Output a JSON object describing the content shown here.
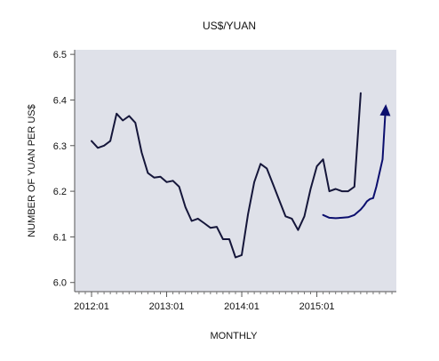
{
  "chart_data": {
    "type": "line",
    "title": "US$/YUAN",
    "xlabel": "MONTHLY",
    "ylabel": "NUMBER OF YUAN PER US$",
    "ylim": [
      5.98,
      6.51
    ],
    "yticks": [
      6.0,
      6.1,
      6.2,
      6.3,
      6.4,
      6.5
    ],
    "ytick_labels": [
      "6.0",
      "6.1",
      "6.2",
      "6.3",
      "6.4",
      "6.5"
    ],
    "xticks": [
      {
        "label": "2012:01",
        "month": 0
      },
      {
        "label": "2013:01",
        "month": 12
      },
      {
        "label": "2014:01",
        "month": 24
      },
      {
        "label": "2015:01",
        "month": 36
      }
    ],
    "xlim_months": [
      -2.7,
      48.7
    ],
    "grid": false,
    "background_color": "#dfe1e9",
    "series": [
      {
        "line_color": "#15163a",
        "x": [
          0,
          1,
          2,
          3,
          4,
          5,
          6,
          7,
          8,
          9,
          10,
          11,
          12,
          13,
          14,
          15,
          16,
          17,
          18,
          19,
          20,
          21,
          22,
          23,
          24,
          25,
          26,
          27,
          28,
          29,
          30,
          31,
          32,
          33,
          34,
          35,
          36,
          37,
          38,
          39,
          40,
          41,
          42,
          43
        ],
        "values": [
          6.31,
          6.295,
          6.3,
          6.31,
          6.37,
          6.355,
          6.365,
          6.35,
          6.285,
          6.24,
          6.23,
          6.232,
          6.22,
          6.223,
          6.21,
          6.165,
          6.135,
          6.14,
          6.13,
          6.12,
          6.122,
          6.095,
          6.095,
          6.055,
          6.06,
          6.15,
          6.22,
          6.26,
          6.25,
          6.215,
          6.18,
          6.145,
          6.14,
          6.115,
          6.145,
          6.205,
          6.255,
          6.27,
          6.2,
          6.205,
          6.2,
          6.2,
          6.21,
          6.415
        ]
      },
      {
        "line_color": "#0c0f6e",
        "arrow": true,
        "x": [
          37,
          38,
          39,
          40,
          41,
          42,
          43,
          43.5,
          44,
          44.5,
          45,
          45.5,
          46,
          46.5,
          47
        ],
        "values": [
          6.148,
          6.142,
          6.141,
          6.142,
          6.143,
          6.148,
          6.16,
          6.168,
          6.178,
          6.183,
          6.185,
          6.21,
          6.24,
          6.27,
          6.385
        ]
      }
    ]
  }
}
